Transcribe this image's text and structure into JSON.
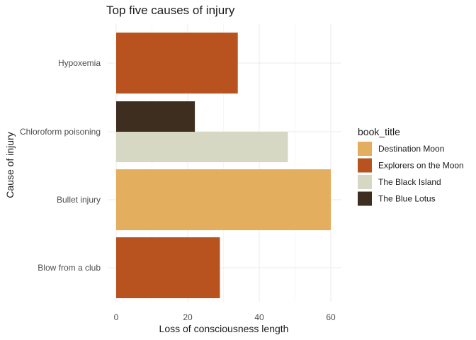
{
  "chart_data": {
    "type": "bar",
    "orientation": "horizontal",
    "position": "dodge",
    "title": "Top five causes of injury",
    "xlabel": "Loss of consciousness length",
    "ylabel": "Cause of injury",
    "xlim": [
      0,
      62
    ],
    "x_ticks": [
      0,
      20,
      40,
      60
    ],
    "grid": true,
    "legend_title": "book_title",
    "legend_position": "right",
    "categories": [
      "Hypoxemia",
      "Chloroform poisoning",
      "Bullet injury",
      "Blow from a club"
    ],
    "series": [
      {
        "name": "Destination Moon",
        "color": "#E3AE5E"
      },
      {
        "name": "Explorers on the Moon",
        "color": "#B8521E"
      },
      {
        "name": "The Black Island",
        "color": "#D6D8C3"
      },
      {
        "name": "The Blue Lotus",
        "color": "#3E2E20"
      }
    ],
    "bars": [
      {
        "category": "Hypoxemia",
        "series": "Explorers on the Moon",
        "value": 34
      },
      {
        "category": "Chloroform poisoning",
        "series": "The Black Island",
        "value": 48
      },
      {
        "category": "Chloroform poisoning",
        "series": "The Blue Lotus",
        "value": 22
      },
      {
        "category": "Bullet injury",
        "series": "Destination Moon",
        "value": 60
      },
      {
        "category": "Blow from a club",
        "series": "Explorers on the Moon",
        "value": 29
      }
    ]
  }
}
